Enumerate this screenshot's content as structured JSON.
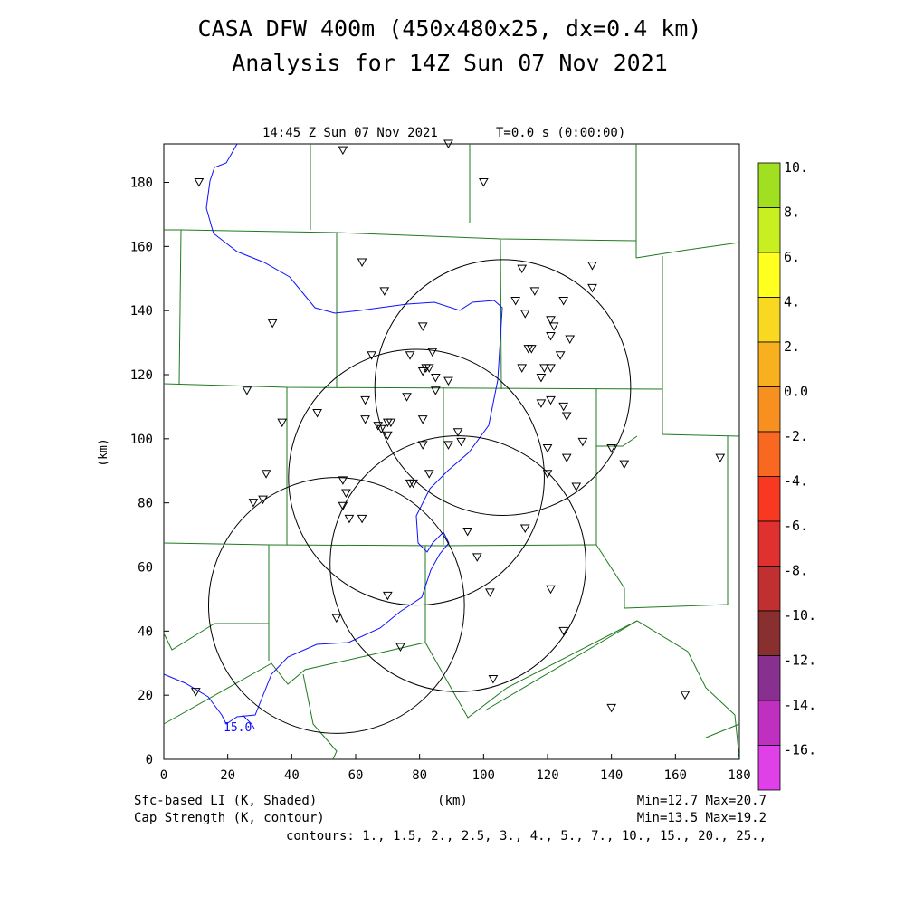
{
  "title_line1": "CASA DFW 400m (450x480x25, dx=0.4 km)",
  "title_line2": "Analysis for 14Z Sun 07 Nov 2021",
  "panel_time": "14:45 Z Sun 07 Nov 2021",
  "panel_t": "T=0.0 s (0:00:00)",
  "footer": {
    "left1": "Sfc-based LI (K, Shaded)",
    "left2": "Cap Strength (K, contour)",
    "center": "(km)",
    "right1": "Min=12.7 Max=20.7",
    "right2": "Min=13.5 Max=19.2",
    "contours": "contours: 1., 1.5, 2., 2.5, 3., 4., 5., 7., 10., 15., 20., 25.,"
  },
  "chart_data": {
    "type": "scatter",
    "xlabel": "(km)",
    "ylabel": "(km)",
    "xlim": [
      0,
      180
    ],
    "ylim": [
      0,
      192
    ],
    "xticks": [
      0,
      20,
      40,
      60,
      80,
      100,
      120,
      140,
      160,
      180
    ],
    "yticks": [
      0,
      20,
      40,
      60,
      80,
      100,
      120,
      140,
      160,
      180
    ],
    "contour_label": "15.0",
    "colorbar": {
      "labels": [
        "10.",
        "8.",
        "6.",
        "4.",
        "2.",
        "0.0",
        "-2.",
        "-4.",
        "-6.",
        "-8.",
        "-10.",
        "-12.",
        "-14.",
        "-16."
      ],
      "colors": [
        "#a0e020",
        "#c8f020",
        "#ffff20",
        "#f8d820",
        "#f8b020",
        "#f89020",
        "#f86820",
        "#f83820",
        "#e03030",
        "#c03030",
        "#883030",
        "#883090",
        "#c030c0",
        "#e040e8"
      ]
    },
    "radar_rings": [
      {
        "center": [
          106,
          116
        ],
        "radius": 40
      },
      {
        "center": [
          79,
          88
        ],
        "radius": 40
      },
      {
        "center": [
          92,
          61
        ],
        "radius": 40
      },
      {
        "center": [
          54,
          48
        ],
        "radius": 40
      }
    ],
    "stations": [
      [
        11,
        180
      ],
      [
        56,
        190
      ],
      [
        89,
        192
      ],
      [
        100,
        180
      ],
      [
        62,
        155
      ],
      [
        134,
        154
      ],
      [
        112,
        153
      ],
      [
        134,
        147
      ],
      [
        69,
        146
      ],
      [
        116,
        146
      ],
      [
        110,
        143
      ],
      [
        125,
        143
      ],
      [
        113,
        139
      ],
      [
        34,
        136
      ],
      [
        121,
        137
      ],
      [
        122,
        135
      ],
      [
        81,
        135
      ],
      [
        121,
        132
      ],
      [
        127,
        131
      ],
      [
        114,
        128
      ],
      [
        115,
        128
      ],
      [
        65,
        126
      ],
      [
        77,
        126
      ],
      [
        84,
        127
      ],
      [
        124,
        126
      ],
      [
        82,
        122
      ],
      [
        83,
        122
      ],
      [
        81,
        121
      ],
      [
        112,
        122
      ],
      [
        119,
        122
      ],
      [
        121,
        122
      ],
      [
        118,
        119
      ],
      [
        85,
        119
      ],
      [
        89,
        118
      ],
      [
        26,
        115
      ],
      [
        85,
        115
      ],
      [
        76,
        113
      ],
      [
        63,
        112
      ],
      [
        121,
        112
      ],
      [
        118,
        111
      ],
      [
        125,
        110
      ],
      [
        48,
        108
      ],
      [
        126,
        107
      ],
      [
        37,
        105
      ],
      [
        63,
        106
      ],
      [
        70,
        105
      ],
      [
        71,
        105
      ],
      [
        67,
        104
      ],
      [
        81,
        106
      ],
      [
        68,
        103
      ],
      [
        70,
        101
      ],
      [
        92,
        102
      ],
      [
        131,
        99
      ],
      [
        81,
        98
      ],
      [
        89,
        98
      ],
      [
        93,
        99
      ],
      [
        140,
        97
      ],
      [
        120,
        97
      ],
      [
        174,
        94
      ],
      [
        144,
        92
      ],
      [
        126,
        94
      ],
      [
        32,
        89
      ],
      [
        83,
        89
      ],
      [
        120,
        89
      ],
      [
        77,
        86
      ],
      [
        78,
        86
      ],
      [
        129,
        85
      ],
      [
        56,
        87
      ],
      [
        28,
        80
      ],
      [
        31,
        81
      ],
      [
        57,
        83
      ],
      [
        56,
        79
      ],
      [
        58,
        75
      ],
      [
        62,
        75
      ],
      [
        113,
        72
      ],
      [
        95,
        71
      ],
      [
        98,
        63
      ],
      [
        121,
        53
      ],
      [
        102,
        52
      ],
      [
        70,
        51
      ],
      [
        54,
        44
      ],
      [
        125,
        40
      ],
      [
        74,
        35
      ],
      [
        103,
        25
      ],
      [
        10,
        21
      ],
      [
        140,
        16
      ],
      [
        163,
        20
      ]
    ]
  }
}
